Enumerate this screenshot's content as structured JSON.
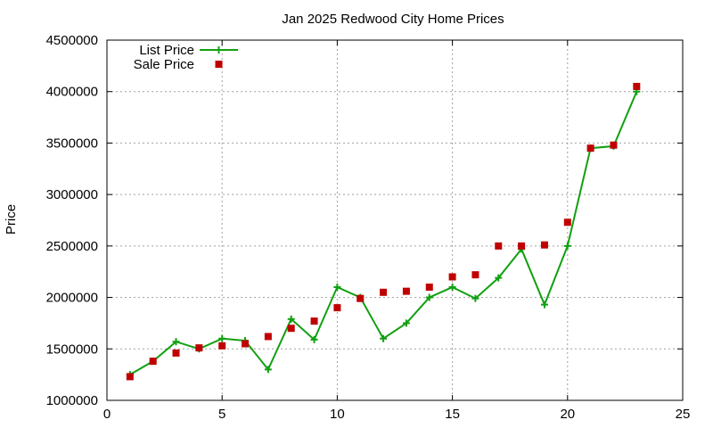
{
  "chart_data": {
    "type": "line",
    "title": "Jan 2025 Redwood City Home Prices",
    "xlabel": "",
    "ylabel": "Price",
    "xlim": [
      0,
      25
    ],
    "ylim": [
      1000000,
      4500000
    ],
    "x_ticks": [
      0,
      5,
      10,
      15,
      20,
      25
    ],
    "y_ticks": [
      1000000,
      1500000,
      2000000,
      2500000,
      3000000,
      3500000,
      4000000,
      4500000
    ],
    "grid": true,
    "legend_position": "top-left",
    "x": [
      1,
      2,
      3,
      4,
      5,
      6,
      7,
      8,
      9,
      10,
      11,
      12,
      13,
      14,
      15,
      16,
      17,
      18,
      19,
      20,
      21,
      22,
      23
    ],
    "series": [
      {
        "name": "List Price",
        "style": "line+cross",
        "color": "#11a011",
        "values": [
          1250000,
          1380000,
          1570000,
          1500000,
          1600000,
          1580000,
          1300000,
          1790000,
          1590000,
          2100000,
          2000000,
          1600000,
          1750000,
          2000000,
          2100000,
          1990000,
          2190000,
          2470000,
          1930000,
          2500000,
          3450000,
          3470000,
          4000000
        ]
      },
      {
        "name": "Sale Price",
        "style": "square",
        "color": "#c00000",
        "values": [
          1230000,
          1380000,
          1460000,
          1510000,
          1530000,
          1550000,
          1620000,
          1700000,
          1770000,
          1900000,
          1990000,
          2050000,
          2060000,
          2100000,
          2200000,
          2220000,
          2500000,
          2500000,
          2510000,
          2730000,
          3450000,
          3480000,
          4050000
        ]
      }
    ]
  }
}
